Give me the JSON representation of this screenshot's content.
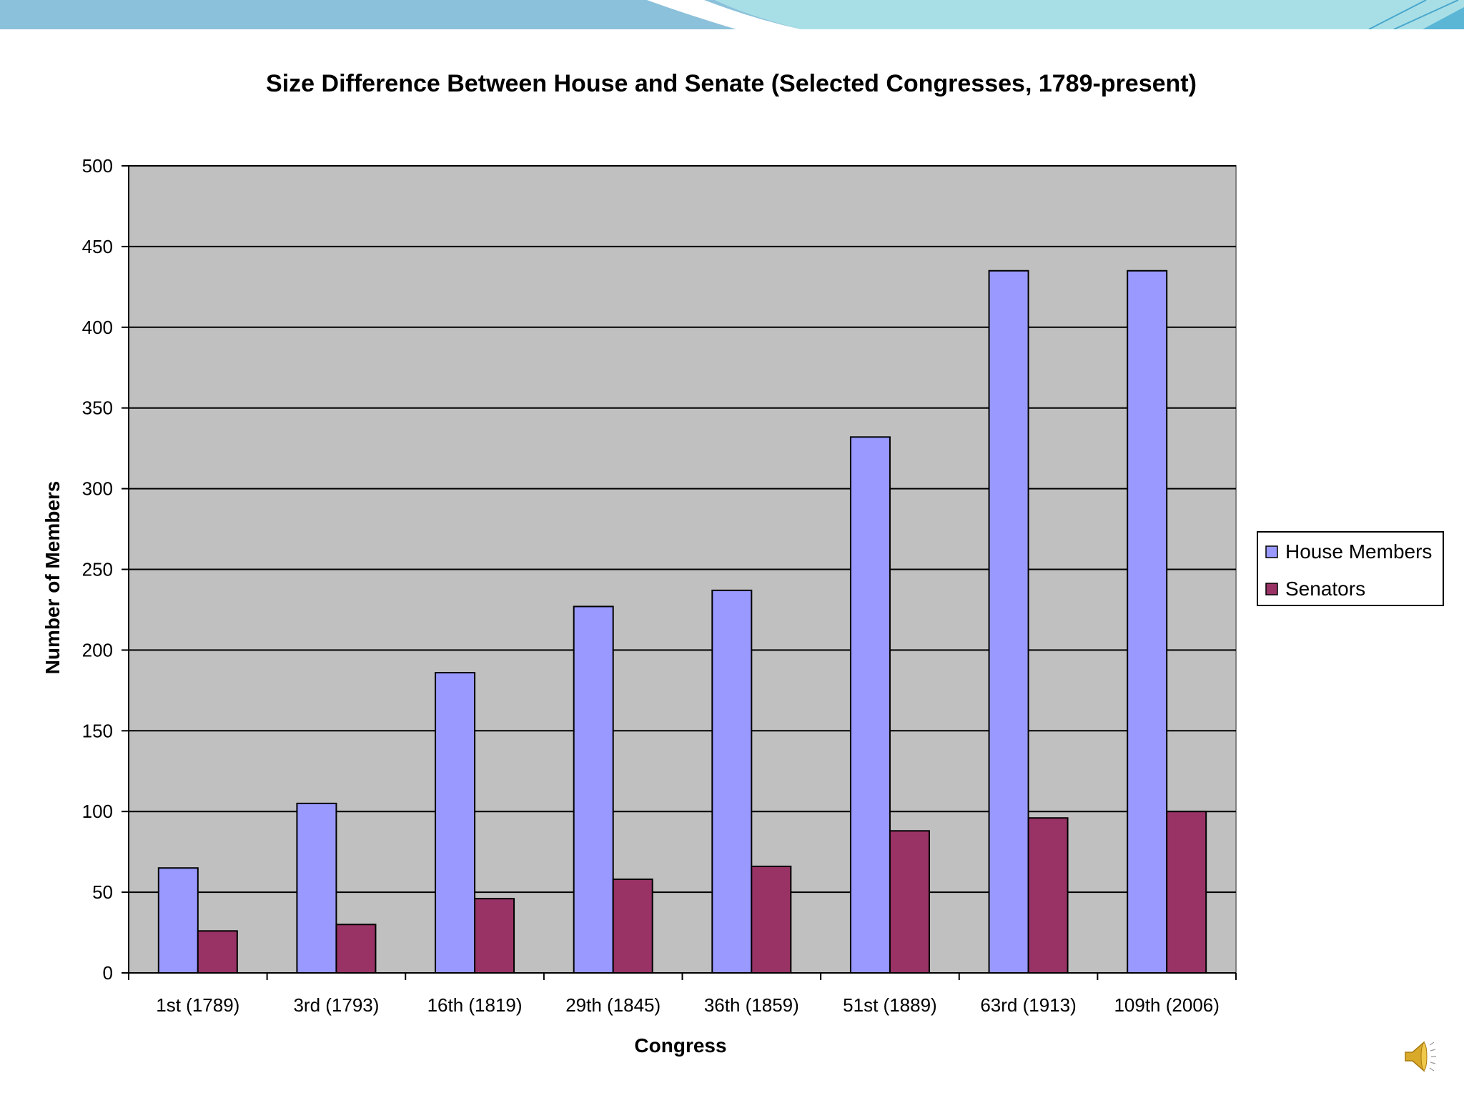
{
  "chart_data": {
    "type": "bar",
    "title": "Size Difference Between House and Senate (Selected Congresses, 1789-present)",
    "xlabel": "Congress",
    "ylabel": "Number of Members",
    "ylim": [
      0,
      500
    ],
    "yticks": [
      0,
      50,
      100,
      150,
      200,
      250,
      300,
      350,
      400,
      450,
      500
    ],
    "grid": true,
    "legend_position": "right",
    "categories": [
      "1st (1789)",
      "3rd (1793)",
      "16th (1819)",
      "29th (1845)",
      "36th (1859)",
      "51st (1889)",
      "63rd (1913)",
      "109th (2006)"
    ],
    "series": [
      {
        "name": "House Members",
        "color": "#9999ff",
        "values": [
          65,
          105,
          186,
          227,
          237,
          332,
          435,
          435
        ]
      },
      {
        "name": "Senators",
        "color": "#993366",
        "values": [
          26,
          30,
          46,
          58,
          66,
          88,
          96,
          100
        ]
      }
    ],
    "plot_background": "#c0c0c0"
  },
  "decorations": {
    "banner_icon": "slide-banner",
    "speaker_icon": "speaker-icon"
  }
}
